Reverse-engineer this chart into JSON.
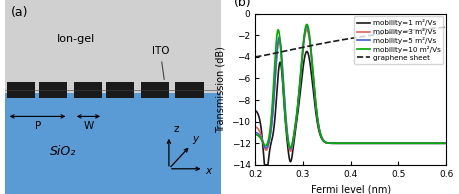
{
  "fig_width": 4.6,
  "fig_height": 1.94,
  "dpi": 100,
  "panel_a": {
    "label": "(a)",
    "ion_gel_color": "#d0d0d0",
    "sio2_color": "#5b9bd5",
    "ito_color": "#1a1a1a",
    "ion_gel_label": "Ion-gel",
    "sio2_label": "SiO₂",
    "ito_label": "ITO",
    "P_label": "P",
    "W_label": "W"
  },
  "panel_b": {
    "label": "(b)",
    "xlabel": "Fermi level (nm)",
    "ylabel": "Transmission (dB)",
    "xlim": [
      0.2,
      0.6
    ],
    "ylim": [
      -14,
      0
    ],
    "yticks": [
      0,
      -2,
      -4,
      -6,
      -8,
      -10,
      -12,
      -14
    ],
    "xticks": [
      0.2,
      0.3,
      0.4,
      0.5,
      0.6
    ],
    "curves": {
      "mob1": {
        "label": "mobility=1 m²/Vs",
        "color": "#1a1a1a",
        "linewidth": 1.2,
        "style": "-"
      },
      "mob3": {
        "label": "mobility=3 m²/Vs",
        "color": "#e06060",
        "linewidth": 1.2,
        "style": "-"
      },
      "mob5": {
        "label": "mobility=5 m²/Vs",
        "color": "#4060d0",
        "linewidth": 1.2,
        "style": "-"
      },
      "mob10": {
        "label": "mobility=10 m²/Vs",
        "color": "#00aa00",
        "linewidth": 1.2,
        "style": "-"
      },
      "graphene": {
        "label": "graphene sheet",
        "color": "#1a1a1a",
        "linewidth": 1.2,
        "style": "--"
      }
    }
  }
}
